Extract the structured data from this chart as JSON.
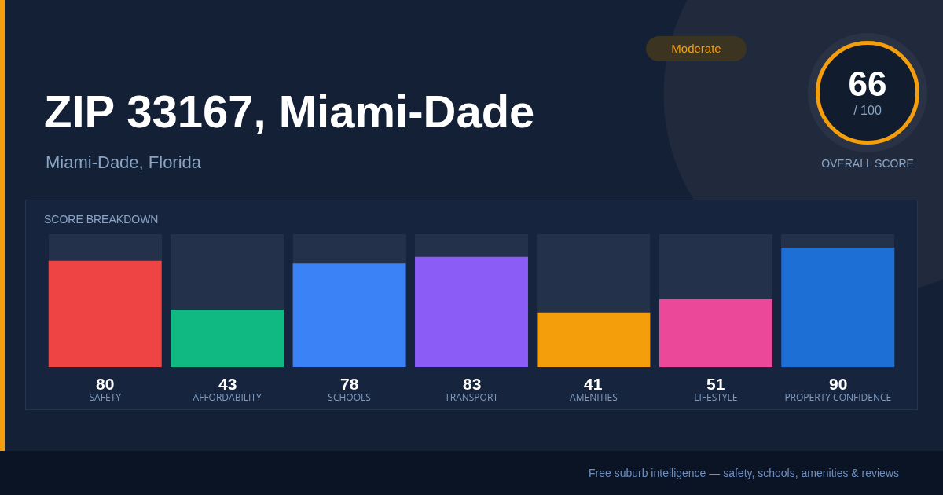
{
  "chart_data": [
    {
      "type": "bar",
      "title": "ZIP 33167, Miami-Dade",
      "subtitle": "Miami-Dade, Florida",
      "categories": [
        "SAFETY",
        "AFFORDABILITY",
        "SCHOOLS",
        "TRANSPORT",
        "AMENITIES",
        "LIFESTYLE",
        "PROPERTY CONFIDENCE"
      ],
      "values": [
        80,
        43,
        78,
        83,
        41,
        51,
        90
      ],
      "colors": [
        "#ef4444",
        "#10b981",
        "#3b82f6",
        "#8b5cf6",
        "#f59e0b",
        "#ec4899",
        "#1d6fd6"
      ],
      "ylim": [
        0,
        100
      ],
      "data_labels": true,
      "tick_labels": "x",
      "grid": false,
      "legend": false,
      "annotations": [
        "SCORE BREAKDOWN",
        "Free suburb intelligence — safety, schools, amenities & reviews"
      ]
    },
    {
      "type": "other",
      "annotations": [
        "Moderate",
        "66",
        "/ 100",
        "OVERALL SCORE"
      ]
    }
  ]
}
